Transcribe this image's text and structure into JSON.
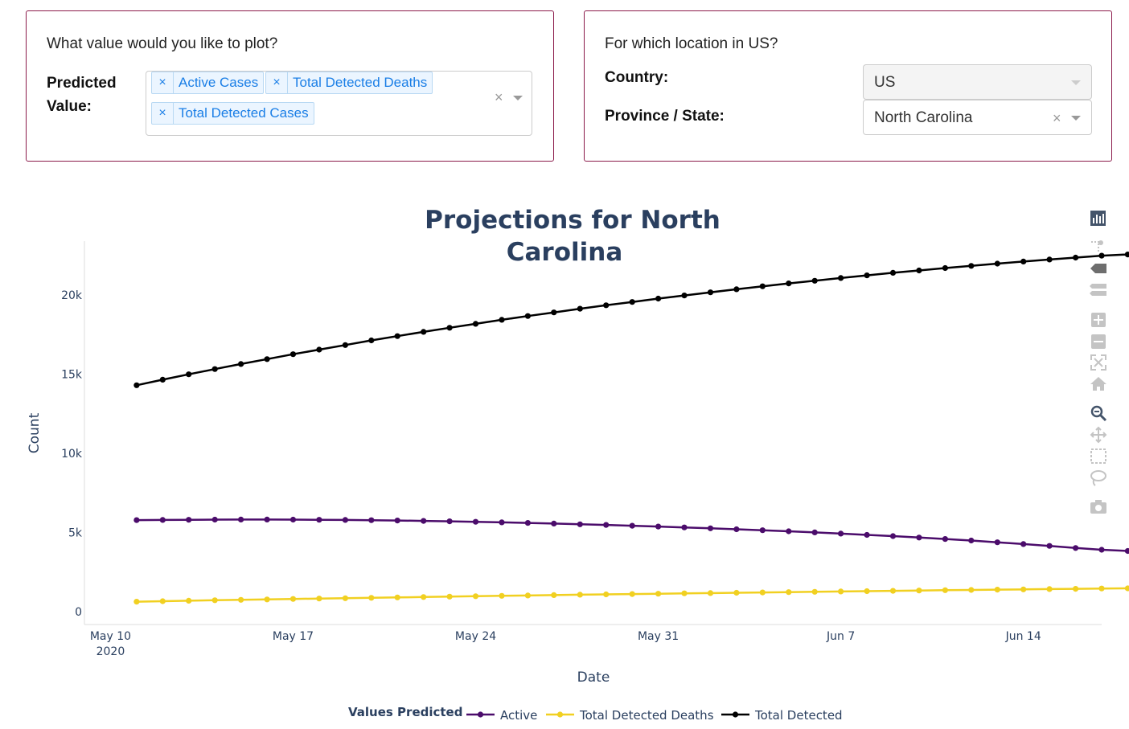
{
  "controls": {
    "plot_question": "What value would you like to plot?",
    "predicted_label_line1": "Predicted",
    "predicted_label_line2": "Value:",
    "selected_values": [
      "Active Cases",
      "Total Detected Deaths",
      "Total Detected Cases"
    ],
    "tag_remove_symbol": "×",
    "clear_symbol": "×",
    "location_question": "For which location in US?",
    "country_label": "Country:",
    "country_value": "US",
    "state_label": "Province / State:",
    "state_value": "North Carolina"
  },
  "colors": {
    "card_border": "#8b1a4a",
    "tag_text": "#1a7ee6",
    "title": "#2a3f5f",
    "active": "#4b0c6b",
    "deaths": "#f1d021",
    "detected": "#000000"
  },
  "modebar_icons": [
    "bar-chart-icon",
    "spike-lines-icon",
    "hover-closest-icon",
    "hover-compare-icon",
    "zoom-in-icon",
    "zoom-out-icon",
    "autoscale-icon",
    "reset-axes-icon",
    "zoom-icon",
    "pan-icon",
    "box-select-icon",
    "lasso-select-icon",
    "camera-icon"
  ],
  "chart_data": {
    "type": "line",
    "title": "Projections for North Carolina",
    "title_lines": [
      "Projections for North",
      "Carolina"
    ],
    "xlabel": "Date",
    "ylabel": "Count",
    "x_start": "2020-05-11",
    "x_end": "2020-06-14",
    "xlim": [
      "2020-05-09",
      "2020-06-17"
    ],
    "x_ticks": [
      "2020-05-10",
      "2020-05-17",
      "2020-05-24",
      "2020-05-31",
      "2020-06-07",
      "2020-06-14"
    ],
    "x_tick_labels": [
      "May 10",
      "May 17",
      "May 24",
      "May 31",
      "Jun 7",
      "Jun 14"
    ],
    "x_tick_sublabel": "2020",
    "ylim": [
      0,
      24000
    ],
    "y_ticks": [
      0,
      5000,
      10000,
      15000,
      20000
    ],
    "y_tick_labels": [
      "0",
      "5k",
      "10k",
      "15k",
      "20k"
    ],
    "grid": false,
    "legend_title": "Values Predicted",
    "legend_position": "bottom",
    "series": [
      {
        "name": "Active",
        "color": "#4b0c6b",
        "values": [
          5780,
          5790,
          5800,
          5810,
          5815,
          5815,
          5810,
          5800,
          5790,
          5775,
          5755,
          5730,
          5705,
          5675,
          5640,
          5605,
          5565,
          5520,
          5475,
          5425,
          5375,
          5320,
          5265,
          5205,
          5140,
          5075,
          5005,
          4930,
          4850,
          4770,
          4680,
          4590,
          4490,
          4380,
          4270,
          4150,
          4020,
          3910,
          3830
        ]
      },
      {
        "name": "Total Detected Deaths",
        "color": "#f1d021",
        "values": [
          630,
          660,
          690,
          720,
          745,
          770,
          800,
          825,
          850,
          875,
          900,
          925,
          950,
          975,
          1000,
          1020,
          1045,
          1070,
          1090,
          1110,
          1130,
          1155,
          1175,
          1195,
          1215,
          1235,
          1255,
          1275,
          1295,
          1315,
          1335,
          1355,
          1370,
          1390,
          1405,
          1425,
          1440,
          1460,
          1470
        ]
      },
      {
        "name": "Total Detected",
        "color": "#000000",
        "values": [
          14300,
          14650,
          14990,
          15320,
          15640,
          15950,
          16260,
          16550,
          16840,
          17130,
          17400,
          17670,
          17930,
          18180,
          18430,
          18670,
          18900,
          19130,
          19350,
          19560,
          19770,
          19970,
          20170,
          20360,
          20550,
          20730,
          20900,
          21070,
          21240,
          21400,
          21550,
          21700,
          21840,
          21980,
          22110,
          22240,
          22360,
          22480,
          22560
        ]
      }
    ]
  }
}
